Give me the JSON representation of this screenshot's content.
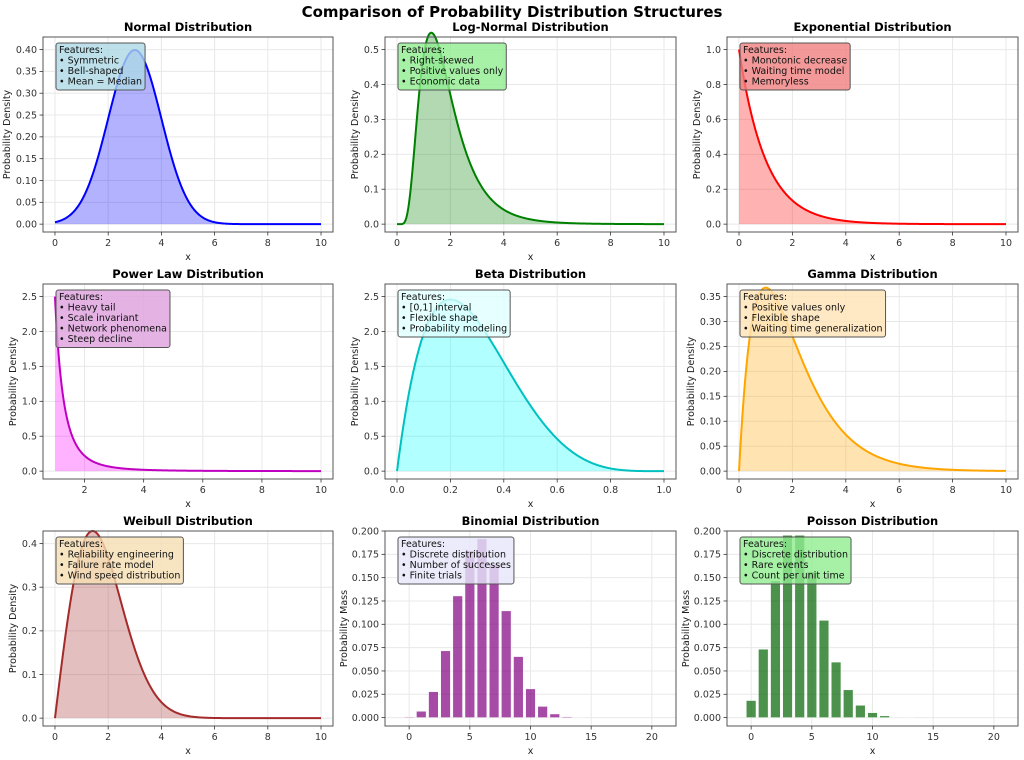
{
  "figure_title": "Comparison of Probability Distribution Structures",
  "chart_data": [
    {
      "type": "area",
      "title": "Normal Distribution",
      "distribution": "normal",
      "params": {
        "mean": 3,
        "std": 1
      },
      "xlabel": "x",
      "ylabel": "Probability Density",
      "xlim": [
        0,
        10
      ],
      "ylim": [
        0,
        0.4
      ],
      "xticks": [
        "0",
        "2",
        "4",
        "6",
        "8",
        "10"
      ],
      "yticks": [
        "0.00",
        "0.05",
        "0.10",
        "0.15",
        "0.20",
        "0.25",
        "0.30",
        "0.35",
        "0.40"
      ],
      "line_color": "#0000ff",
      "fill_color": "#0000ff",
      "annotation": [
        "Features:",
        "• Symmetric",
        "• Bell-shaped",
        "• Mean = Median"
      ],
      "annotation_color": "#add8e6",
      "grid": true
    },
    {
      "type": "area",
      "title": "Log-Normal Distribution",
      "distribution": "lognormal",
      "params": {
        "mu": 0.5,
        "sigma": 0.5
      },
      "xlabel": "x",
      "ylabel": "Probability Density",
      "xlim": [
        0,
        10
      ],
      "ylim": [
        0,
        0.5
      ],
      "xticks": [
        "0",
        "2",
        "4",
        "6",
        "8",
        "10"
      ],
      "yticks": [
        "0.0",
        "0.1",
        "0.2",
        "0.3",
        "0.4",
        "0.5"
      ],
      "line_color": "#008000",
      "fill_color": "#008000",
      "annotation": [
        "Features:",
        "• Right-skewed",
        "• Positive values only",
        "• Economic data"
      ],
      "annotation_color": "#90ee90",
      "grid": true
    },
    {
      "type": "area",
      "title": "Exponential Distribution",
      "distribution": "exponential",
      "params": {
        "rate": 1
      },
      "xlabel": "x",
      "ylabel": "Probability Density",
      "xlim": [
        0,
        10
      ],
      "ylim": [
        0,
        1.0
      ],
      "xticks": [
        "0",
        "2",
        "4",
        "6",
        "8",
        "10"
      ],
      "yticks": [
        "0.0",
        "0.2",
        "0.4",
        "0.6",
        "0.8",
        "1.0"
      ],
      "line_color": "#ff0000",
      "fill_color": "#ff0000",
      "annotation": [
        "Features:",
        "• Monotonic decrease",
        "• Waiting time model",
        "• Memoryless"
      ],
      "annotation_color": "#f08080",
      "grid": true
    },
    {
      "type": "area",
      "title": "Power Law Distribution",
      "distribution": "powerlaw",
      "params": {
        "alpha": 3.5,
        "xmin": 1
      },
      "xlabel": "x",
      "ylabel": "Probability Density",
      "xlim": [
        1,
        10
      ],
      "ylim": [
        0,
        2.5
      ],
      "xticks": [
        "2",
        "4",
        "6",
        "8",
        "10"
      ],
      "yticks": [
        "0.0",
        "0.5",
        "1.0",
        "1.5",
        "2.0",
        "2.5"
      ],
      "line_color": "#c000c0",
      "fill_color": "#ff00ff",
      "annotation": [
        "Features:",
        "• Heavy tail",
        "• Scale invariant",
        "• Network phenomena",
        "• Steep decline"
      ],
      "annotation_color": "#dda0dd",
      "grid": true
    },
    {
      "type": "area",
      "title": "Beta Distribution",
      "distribution": "beta",
      "params": {
        "a": 2,
        "b": 5
      },
      "xlabel": "x",
      "ylabel": "Probability Density",
      "xlim": [
        0,
        1
      ],
      "ylim": [
        0,
        2.5
      ],
      "xticks": [
        "0.0",
        "0.2",
        "0.4",
        "0.6",
        "0.8",
        "1.0"
      ],
      "yticks": [
        "0.0",
        "0.5",
        "1.0",
        "1.5",
        "2.0",
        "2.5"
      ],
      "line_color": "#00c0c0",
      "fill_color": "#00ffff",
      "annotation": [
        "Features:",
        "• [0,1] interval",
        "• Flexible shape",
        "• Probability modeling"
      ],
      "annotation_color": "#e0ffff",
      "grid": true
    },
    {
      "type": "area",
      "title": "Gamma Distribution",
      "distribution": "gamma",
      "params": {
        "shape": 2,
        "scale": 1
      },
      "xlabel": "x",
      "ylabel": "Probability Density",
      "xlim": [
        0,
        10
      ],
      "ylim": [
        0,
        0.35
      ],
      "xticks": [
        "0",
        "2",
        "4",
        "6",
        "8",
        "10"
      ],
      "yticks": [
        "0.00",
        "0.05",
        "0.10",
        "0.15",
        "0.20",
        "0.25",
        "0.30",
        "0.35"
      ],
      "line_color": "#ffa500",
      "fill_color": "#ffa500",
      "annotation": [
        "Features:",
        "• Positive values only",
        "• Flexible shape",
        "• Waiting time generalization"
      ],
      "annotation_color": "#ffe4b5",
      "grid": true
    },
    {
      "type": "area",
      "title": "Weibull Distribution",
      "distribution": "weibull",
      "params": {
        "k": 2,
        "lambda": 2
      },
      "xlabel": "x",
      "ylabel": "Probability Density",
      "xlim": [
        0,
        10
      ],
      "ylim": [
        0,
        0.4
      ],
      "xticks": [
        "0",
        "2",
        "4",
        "6",
        "8",
        "10"
      ],
      "yticks": [
        "0.0",
        "0.1",
        "0.2",
        "0.3",
        "0.4"
      ],
      "line_color": "#a52a2a",
      "fill_color": "#a52a2a",
      "annotation": [
        "Features:",
        "• Reliability engineering",
        "• Failure rate model",
        "• Wind speed distribution"
      ],
      "annotation_color": "#f5deb3",
      "grid": true
    },
    {
      "type": "bar",
      "title": "Binomial Distribution",
      "distribution": "binomial",
      "params": {
        "n": 20,
        "p": 0.3
      },
      "xlabel": "x",
      "ylabel": "Probability Mass",
      "x": [
        0,
        1,
        2,
        3,
        4,
        5,
        6,
        7,
        8,
        9,
        10,
        11,
        12,
        13,
        14,
        15,
        16,
        17,
        18,
        19,
        20
      ],
      "values": [
        0.0008,
        0.0068,
        0.0278,
        0.0716,
        0.1304,
        0.1789,
        0.1916,
        0.1643,
        0.1144,
        0.0654,
        0.0308,
        0.012,
        0.0039,
        0.001,
        0.0002,
        0,
        0,
        0,
        0,
        0,
        0
      ],
      "xlim": [
        -1,
        21
      ],
      "ylim": [
        0,
        0.2
      ],
      "xticks": [
        "0",
        "5",
        "10",
        "15",
        "20"
      ],
      "yticks": [
        "0.000",
        "0.025",
        "0.050",
        "0.075",
        "0.100",
        "0.125",
        "0.150",
        "0.175",
        "0.200"
      ],
      "bar_color": "#800080",
      "annotation": [
        "Features:",
        "• Discrete distribution",
        "• Number of successes",
        "• Finite trials"
      ],
      "annotation_color": "#e6e6fa",
      "grid": true
    },
    {
      "type": "bar",
      "title": "Poisson Distribution",
      "distribution": "poisson",
      "params": {
        "lambda": 4
      },
      "xlabel": "x",
      "ylabel": "Probability Mass",
      "x": [
        0,
        1,
        2,
        3,
        4,
        5,
        6,
        7,
        8,
        9,
        10,
        11,
        12,
        13,
        14,
        15,
        16,
        17,
        18,
        19,
        20
      ],
      "values": [
        0.0183,
        0.0733,
        0.1465,
        0.1954,
        0.1954,
        0.1563,
        0.1042,
        0.0595,
        0.0298,
        0.0132,
        0.0053,
        0.0019,
        0.0006,
        0.0002,
        0,
        0,
        0,
        0,
        0,
        0,
        0
      ],
      "xlim": [
        -1,
        21
      ],
      "ylim": [
        0,
        0.2
      ],
      "xticks": [
        "0",
        "5",
        "10",
        "15",
        "20"
      ],
      "yticks": [
        "0.000",
        "0.025",
        "0.050",
        "0.075",
        "0.100",
        "0.125",
        "0.150",
        "0.175",
        "0.200"
      ],
      "bar_color": "#006400",
      "annotation": [
        "Features:",
        "• Discrete distribution",
        "• Rare events",
        "• Count per unit time"
      ],
      "annotation_color": "#90ee90",
      "grid": true
    }
  ]
}
